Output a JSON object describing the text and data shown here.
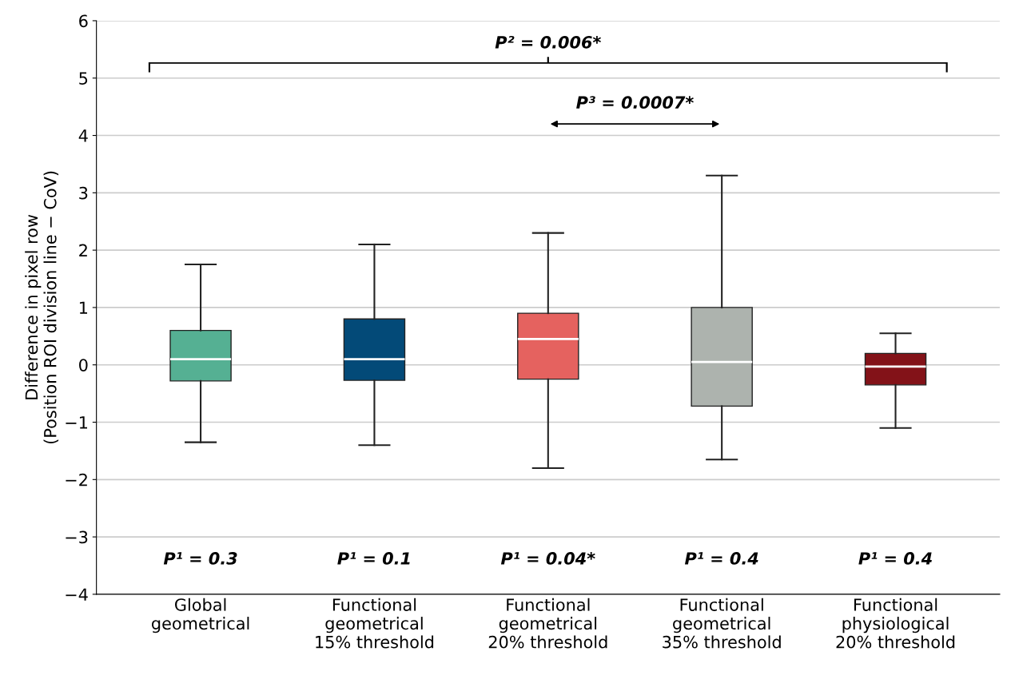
{
  "chart_data": {
    "type": "box",
    "ylabel": "Difference in pixel row\n(Position ROI division line − CoV)",
    "categories": [
      "Global\ngeometrical",
      "Functional\ngeometrical\n15% threshold",
      "Functional\ngeometrical\n20% threshold",
      "Functional\ngeometrical\n35% threshold",
      "Functional\nphysiological\n20% threshold"
    ],
    "colors": [
      "#55b093",
      "#034a78",
      "#e5625f",
      "#adb3ae",
      "#831218"
    ],
    "boxes": [
      {
        "low": -1.35,
        "q1": -0.28,
        "median": 0.1,
        "q3": 0.6,
        "high": 1.75
      },
      {
        "low": -1.4,
        "q1": -0.27,
        "median": 0.1,
        "q3": 0.8,
        "high": 2.1
      },
      {
        "low": -1.8,
        "q1": -0.25,
        "median": 0.45,
        "q3": 0.9,
        "high": 2.3
      },
      {
        "low": -1.65,
        "q1": -0.72,
        "median": 0.05,
        "q3": 1.0,
        "high": 3.3
      },
      {
        "low": -1.1,
        "q1": -0.35,
        "median": -0.03,
        "q3": 0.2,
        "high": 0.55
      }
    ],
    "ylim": [
      -4,
      6
    ],
    "yticks": [
      {
        "value": -4,
        "label": "−4"
      },
      {
        "value": -3,
        "label": "−3"
      },
      {
        "value": -2,
        "label": "−2"
      },
      {
        "value": -1,
        "label": "−1"
      },
      0,
      1,
      2,
      3,
      4,
      5,
      6
    ],
    "grid": "y",
    "annotations": [
      "P² = 0.006*",
      "P³ = 0.0007*",
      "P¹ = 0.3",
      "P¹ = 0.1",
      "P¹ = 0.04*",
      "P¹ = 0.4",
      "P¹ = 0.4"
    ]
  }
}
